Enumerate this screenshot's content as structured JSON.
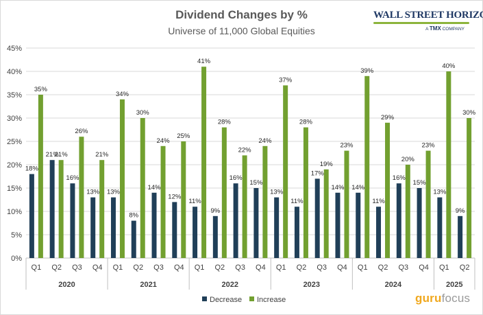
{
  "header": {
    "title": "Dividend Changes by %",
    "subtitle": "Universe of 11,000 Global Equities"
  },
  "logos": {
    "wsh_main": "WALL STREET HORIZON",
    "wsh_sub_prefix": "A",
    "wsh_sub_brand": "TMX",
    "wsh_sub_suffix": "COMPANY",
    "guru_a": "guru",
    "guru_b": "focus"
  },
  "colors": {
    "decrease": "#203f58",
    "increase": "#72a030",
    "grid": "#d9d9d9"
  },
  "chart_data": {
    "type": "bar",
    "title": "Dividend Changes by %",
    "subtitle": "Universe of 11,000 Global Equities",
    "categories": [
      "Q1",
      "Q2",
      "Q3",
      "Q4",
      "Q1",
      "Q2",
      "Q3",
      "Q4",
      "Q1",
      "Q2",
      "Q3",
      "Q4",
      "Q1",
      "Q2",
      "Q3",
      "Q4",
      "Q1",
      "Q2",
      "Q3",
      "Q4",
      "Q1",
      "Q2"
    ],
    "year_groups": [
      {
        "label": "2020",
        "count": 4
      },
      {
        "label": "2021",
        "count": 4
      },
      {
        "label": "2022",
        "count": 4
      },
      {
        "label": "2023",
        "count": 4
      },
      {
        "label": "2024",
        "count": 4
      },
      {
        "label": "2025",
        "count": 2
      }
    ],
    "series": [
      {
        "name": "Decrease",
        "values": [
          18,
          21,
          16,
          13,
          13,
          8,
          14,
          12,
          11,
          9,
          16,
          15,
          13,
          11,
          17,
          14,
          14,
          11,
          16,
          15,
          13,
          9
        ]
      },
      {
        "name": "Increase",
        "values": [
          35,
          21,
          26,
          21,
          34,
          30,
          24,
          25,
          41,
          28,
          22,
          24,
          37,
          28,
          19,
          23,
          39,
          29,
          20,
          23,
          40,
          30
        ]
      }
    ],
    "yticks": [
      "0%",
      "5%",
      "10%",
      "15%",
      "20%",
      "25%",
      "30%",
      "35%",
      "40%",
      "45%"
    ],
    "ylim": [
      0,
      45
    ],
    "value_suffix": "%",
    "legend": [
      "Decrease",
      "Increase"
    ],
    "legend_position": "bottom-center",
    "grid": true
  }
}
